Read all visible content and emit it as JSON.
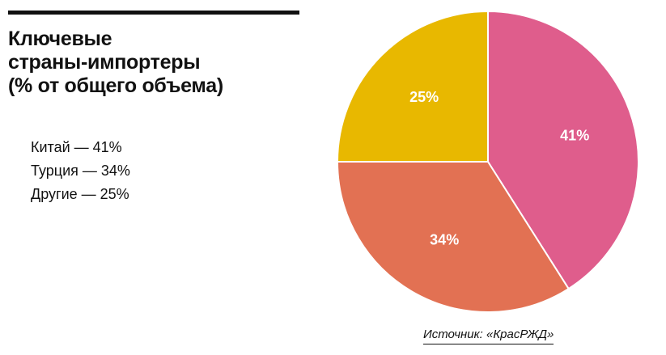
{
  "chart_data": {
    "type": "pie",
    "title_lines": [
      "Ключевые",
      "страны-импортеры",
      "(% от общего объема)"
    ],
    "slices": [
      {
        "label": "Китай",
        "value": 41,
        "value_label": "41%",
        "color": "#df5d8c",
        "legend": "Китай — 41%"
      },
      {
        "label": "Турция",
        "value": 34,
        "value_label": "34%",
        "color": "#e27153",
        "legend": "Турция — 34%"
      },
      {
        "label": "Другие",
        "value": 25,
        "value_label": "25%",
        "color": "#e8b800",
        "legend": "Другие — 25%"
      }
    ]
  },
  "source": "Источник: «КрасРЖД»"
}
